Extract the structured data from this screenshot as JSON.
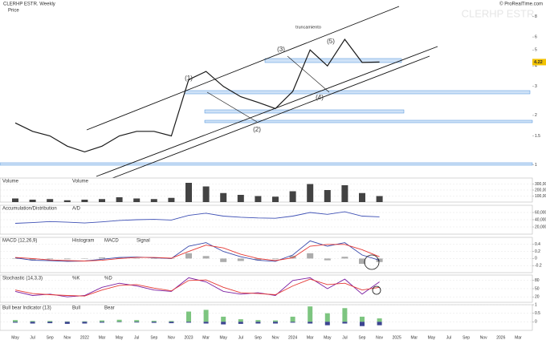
{
  "chart_data": [
    {
      "type": "line",
      "title": "CLERHP ESTR. Weekly",
      "watermark": "CLERHP ESTR",
      "source": "© ProRealTime.com",
      "log_scale": true,
      "grid": false,
      "categories": [
        "May",
        "Jul",
        "Sep",
        "Nov",
        "2022",
        "Mar",
        "May",
        "Jul",
        "Sep",
        "Nov",
        "2023",
        "Mar",
        "May",
        "Jul",
        "Sep",
        "Nov",
        "2024",
        "Mar",
        "May",
        "Jul",
        "Sep",
        "Nov",
        "2025",
        "Mar",
        "May",
        "Jul",
        "Sep",
        "Nov",
        "2026",
        "Mar"
      ],
      "series": [
        {
          "name": "Price",
          "color": "#1a1a1a",
          "values": [
            1.8,
            1.6,
            1.5,
            1.3,
            1.2,
            1.3,
            1.5,
            1.6,
            1.6,
            1.5,
            3.3,
            3.7,
            3.0,
            2.6,
            2.4,
            2.2,
            2.8,
            5.0,
            4.0,
            5.8,
            4.2,
            4.22,
            null,
            null,
            null,
            null,
            null,
            null,
            null,
            null
          ]
        }
      ],
      "ylim": [
        0.9,
        9
      ],
      "yticks": [
        1,
        1.5,
        2,
        3,
        4,
        5,
        6,
        8
      ],
      "annotations": [
        "(1)",
        "(2)",
        "(3)",
        "(4)",
        "(5)",
        "truncamiento"
      ]
    },
    {
      "type": "bar",
      "title": "Volume",
      "ylim": [
        0,
        400000
      ],
      "yticks": [
        {
          "value": 100000,
          "label": "100,000"
        },
        {
          "value": 200000,
          "label": "200,000"
        },
        {
          "value": 300000,
          "label": "300,000"
        }
      ],
      "series": [
        {
          "name": "Volume",
          "color": "#222222",
          "values": [
            60000,
            40000,
            50000,
            30000,
            40000,
            50000,
            80000,
            60000,
            50000,
            70000,
            320000,
            260000,
            150000,
            120000,
            100000,
            90000,
            180000,
            300000,
            200000,
            280000,
            150000,
            100000,
            null,
            null,
            null,
            null,
            null,
            null,
            null,
            null
          ]
        }
      ]
    },
    {
      "type": "line",
      "title": "Accumulation/Distribution",
      "ylim": [
        0,
        80000
      ],
      "yticks": [
        {
          "value": 20000,
          "label": "20,000"
        },
        {
          "value": 40000,
          "label": "40,000"
        },
        {
          "value": 60000,
          "label": "60,000"
        }
      ],
      "series": [
        {
          "name": "A/D",
          "color": "#3f51b5",
          "values": [
            30000,
            32000,
            35000,
            33000,
            31000,
            34000,
            38000,
            40000,
            41000,
            39000,
            52000,
            58000,
            50000,
            47000,
            45000,
            44000,
            50000,
            60000,
            55000,
            62000,
            50000,
            48000,
            null,
            null,
            null,
            null,
            null,
            null,
            null,
            null
          ]
        }
      ]
    },
    {
      "type": "line",
      "title": "MACD (12,26,9)",
      "ylim": [
        -0.4,
        0.6
      ],
      "yticks": [
        -0.2,
        0,
        0.2,
        0.4
      ],
      "series": [
        {
          "name": "Histogram",
          "kind": "bar",
          "color": "#9e9e9e",
          "values": [
            -0.01,
            -0.05,
            -0.02,
            -0.02,
            0,
            0.03,
            0.03,
            0.01,
            -0.01,
            -0.01,
            0.15,
            0.07,
            -0.1,
            -0.07,
            -0.05,
            -0.02,
            0.08,
            0.15,
            -0.05,
            0.05,
            -0.15,
            -0.1,
            null,
            null,
            null,
            null,
            null,
            null,
            null,
            null
          ]
        },
        {
          "name": "MACD",
          "color": "#3949ab",
          "values": [
            0.02,
            -0.05,
            -0.06,
            -0.08,
            -0.07,
            -0.02,
            0.03,
            0.04,
            0.02,
            0.0,
            0.35,
            0.45,
            0.2,
            0.05,
            -0.05,
            -0.08,
            0.1,
            0.5,
            0.35,
            0.45,
            0.1,
            -0.05,
            null,
            null,
            null,
            null,
            null,
            null,
            null,
            null
          ]
        },
        {
          "name": "Signal",
          "color": "#e53935",
          "values": [
            0.03,
            0.0,
            -0.04,
            -0.06,
            -0.07,
            -0.05,
            0.0,
            0.03,
            0.03,
            0.01,
            0.2,
            0.38,
            0.3,
            0.12,
            0.0,
            -0.06,
            0.02,
            0.35,
            0.4,
            0.4,
            0.25,
            0.05,
            null,
            null,
            null,
            null,
            null,
            null,
            null,
            null
          ]
        }
      ]
    },
    {
      "type": "line",
      "title": "Stochastic (14,3,3)",
      "ylim": [
        0,
        100
      ],
      "yticks": [
        20,
        50,
        80
      ],
      "series": [
        {
          "name": "%K",
          "color": "#7b1fa2",
          "values": [
            40,
            25,
            30,
            20,
            25,
            55,
            70,
            60,
            45,
            40,
            90,
            75,
            40,
            30,
            35,
            25,
            80,
            90,
            50,
            85,
            30,
            75,
            null,
            null,
            null,
            null,
            null,
            null,
            null,
            null
          ]
        },
        {
          "name": "%D",
          "color": "#e53935",
          "values": [
            45,
            32,
            28,
            25,
            23,
            45,
            62,
            65,
            52,
            42,
            80,
            82,
            55,
            35,
            32,
            28,
            60,
            85,
            65,
            70,
            45,
            55,
            null,
            null,
            null,
            null,
            null,
            null,
            null,
            null
          ]
        }
      ]
    },
    {
      "type": "bar",
      "title": "Bull bear Indicator (13)",
      "ylim": [
        -0.5,
        1
      ],
      "yticks": [
        0,
        0.5,
        1
      ],
      "series": [
        {
          "name": "Bull",
          "color": "#66bb6a",
          "values": [
            0.1,
            0.05,
            0.05,
            0.02,
            0.03,
            0.08,
            0.12,
            0.1,
            0.06,
            0.05,
            0.6,
            0.7,
            0.3,
            0.15,
            0.1,
            0.08,
            0.3,
            0.9,
            0.5,
            0.8,
            0.3,
            0.2,
            null,
            null,
            null,
            null,
            null,
            null,
            null,
            null
          ]
        },
        {
          "name": "Bear",
          "color": "#1a237e",
          "values": [
            -0.05,
            -0.1,
            -0.08,
            -0.12,
            -0.1,
            -0.05,
            -0.02,
            -0.04,
            -0.06,
            -0.08,
            -0.05,
            -0.1,
            -0.15,
            -0.12,
            -0.1,
            -0.1,
            -0.05,
            -0.1,
            -0.2,
            -0.1,
            -0.25,
            -0.2,
            null,
            null,
            null,
            null,
            null,
            null,
            null,
            null
          ]
        }
      ]
    }
  ]
}
